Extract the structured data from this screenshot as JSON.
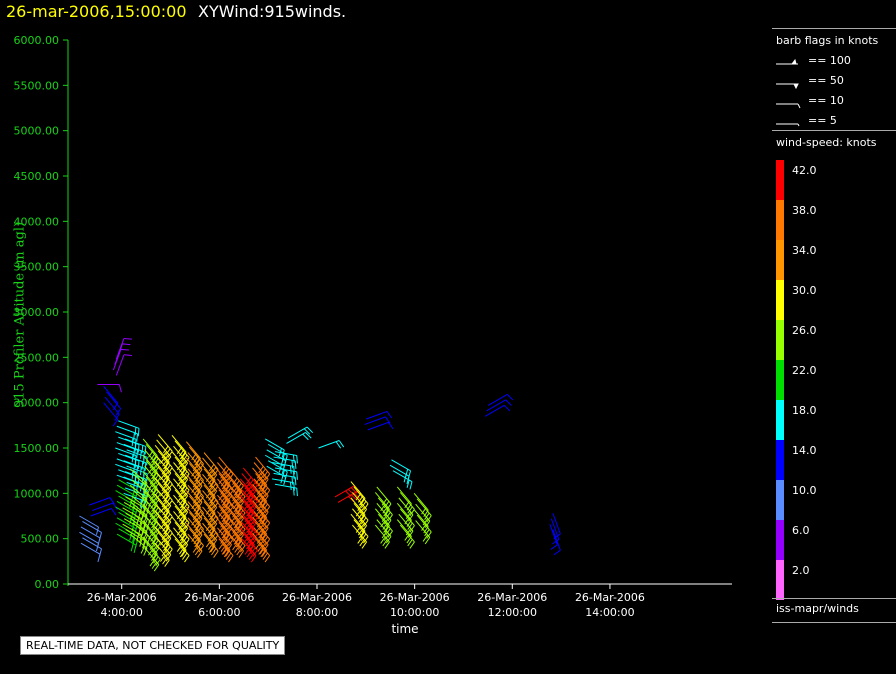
{
  "header": {
    "datetime": "26-mar-2006,15:00:00",
    "title": "XYWind:915winds."
  },
  "footer_note": "REAL-TIME DATA, NOT CHECKED FOR QUALITY",
  "legend": {
    "barb_title": "barb flags in knots",
    "barbs": [
      {
        "label": "== 100"
      },
      {
        "label": "== 50"
      },
      {
        "label": "== 10"
      },
      {
        "label": "== 5"
      }
    ],
    "color_title": "wind-speed: knots",
    "color_scale": [
      {
        "value": "42.0",
        "color": "#ff0000"
      },
      {
        "value": "38.0",
        "color": "#ff7800"
      },
      {
        "value": "34.0",
        "color": "#ff9600"
      },
      {
        "value": "30.0",
        "color": "#ffff00"
      },
      {
        "value": "26.0",
        "color": "#96ff00"
      },
      {
        "value": "22.0",
        "color": "#00e000"
      },
      {
        "value": "18.0",
        "color": "#00ffff"
      },
      {
        "value": "14.0",
        "color": "#0000ff"
      },
      {
        "value": "10.0",
        "color": "#5a8cff"
      },
      {
        "value": "6.0",
        "color": "#9600ff"
      },
      {
        "value": "2.0",
        "color": "#ff64ff"
      }
    ],
    "source": "iss-mapr/winds"
  },
  "chart_data": {
    "type": "scatter",
    "xlabel": "time",
    "ylabel": "915 Profiler Altitude (m agl)",
    "ylim": [
      0,
      6000
    ],
    "yticks": [
      "0.00",
      "500.00",
      "1000.00",
      "1500.00",
      "2000.00",
      "2500.00",
      "3000.00",
      "3500.00",
      "4000.00",
      "4500.00",
      "5000.00",
      "5500.00",
      "6000.00"
    ],
    "xlim_hours": [
      2.9,
      16.5
    ],
    "xticks": [
      {
        "hour": 4,
        "line1": "26-Mar-2006",
        "line2": "4:00:00"
      },
      {
        "hour": 6,
        "line1": "26-Mar-2006",
        "line2": "6:00:00"
      },
      {
        "hour": 8,
        "line1": "26-Mar-2006",
        "line2": "8:00:00"
      },
      {
        "hour": 10,
        "line1": "26-Mar-2006",
        "line2": "10:00:00"
      },
      {
        "hour": 12,
        "line1": "26-Mar-2006",
        "line2": "12:00:00"
      },
      {
        "hour": 14,
        "line1": "26-Mar-2006",
        "line2": "14:00:00"
      }
    ],
    "grid": false,
    "barb_columns": [
      {
        "hour": 3.15,
        "from": 450,
        "to": 750,
        "speed": 8,
        "dir": 300
      },
      {
        "hour": 3.35,
        "from": 750,
        "to": 900,
        "speed": 12,
        "dir": 250
      },
      {
        "hour": 3.45,
        "from": 2200,
        "to": 2250,
        "speed": 6,
        "dir": 270
      },
      {
        "hour": 3.65,
        "from": 2000,
        "to": 2200,
        "speed": 12,
        "dir": 320
      },
      {
        "hour": 3.9,
        "from": 550,
        "to": 1200,
        "speed": 22,
        "dir": 300
      },
      {
        "hour": 3.9,
        "from": 1200,
        "to": 1850,
        "speed": 16,
        "dir": 290
      },
      {
        "hour": 3.85,
        "from": 2300,
        "to": 2500,
        "speed": 6,
        "dir": 200
      },
      {
        "hour": 4.05,
        "from": 600,
        "to": 1000,
        "speed": 24,
        "dir": 300
      },
      {
        "hour": 4.05,
        "from": 1000,
        "to": 1600,
        "speed": 18,
        "dir": 290
      },
      {
        "hour": 4.2,
        "from": 550,
        "to": 1300,
        "speed": 24,
        "dir": 310
      },
      {
        "hour": 4.45,
        "from": 400,
        "to": 1650,
        "speed": 26,
        "dir": 320
      },
      {
        "hour": 4.7,
        "from": 450,
        "to": 1700,
        "speed": 28,
        "dir": 320
      },
      {
        "hour": 5.05,
        "from": 500,
        "to": 1650,
        "speed": 30,
        "dir": 320
      },
      {
        "hour": 5.35,
        "from": 550,
        "to": 1600,
        "speed": 32,
        "dir": 320
      },
      {
        "hour": 5.65,
        "from": 550,
        "to": 1450,
        "speed": 34,
        "dir": 320
      },
      {
        "hour": 5.95,
        "from": 500,
        "to": 1400,
        "speed": 36,
        "dir": 320
      },
      {
        "hour": 6.2,
        "from": 550,
        "to": 1300,
        "speed": 38,
        "dir": 320
      },
      {
        "hour": 6.45,
        "from": 500,
        "to": 1300,
        "speed": 40,
        "dir": 320
      },
      {
        "hour": 6.7,
        "from": 500,
        "to": 1400,
        "speed": 36,
        "dir": 320
      },
      {
        "hour": 6.95,
        "from": 1300,
        "to": 1650,
        "speed": 18,
        "dir": 300
      },
      {
        "hour": 7.1,
        "from": 1100,
        "to": 1500,
        "speed": 16,
        "dir": 280
      },
      {
        "hour": 7.35,
        "from": 1550,
        "to": 1650,
        "speed": 18,
        "dir": 240
      },
      {
        "hour": 8.0,
        "from": 1500,
        "to": 1550,
        "speed": 18,
        "dir": 250
      },
      {
        "hour": 8.4,
        "from": 900,
        "to": 1000,
        "speed": 42,
        "dir": 240
      },
      {
        "hour": 8.7,
        "from": 650,
        "to": 1150,
        "speed": 28,
        "dir": 320
      },
      {
        "hour": 9.0,
        "from": 1700,
        "to": 1850,
        "speed": 14,
        "dir": 250
      },
      {
        "hour": 9.2,
        "from": 650,
        "to": 1100,
        "speed": 26,
        "dir": 320
      },
      {
        "hour": 9.5,
        "from": 1250,
        "to": 1400,
        "speed": 18,
        "dir": 300
      },
      {
        "hour": 9.65,
        "from": 650,
        "to": 1100,
        "speed": 24,
        "dir": 320
      },
      {
        "hour": 10.0,
        "from": 700,
        "to": 1050,
        "speed": 24,
        "dir": 320
      },
      {
        "hour": 11.45,
        "from": 1850,
        "to": 2000,
        "speed": 12,
        "dir": 240
      },
      {
        "hour": 12.8,
        "from": 600,
        "to": 800,
        "speed": 12,
        "dir": 340
      }
    ]
  }
}
